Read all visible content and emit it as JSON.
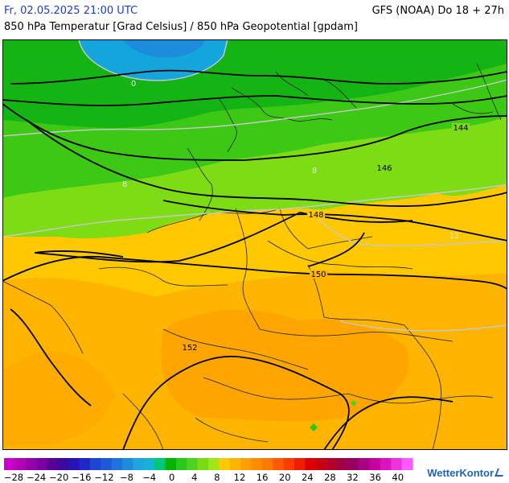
{
  "header": {
    "datetime": "Fr, 02.05.2025 21:00 UTC",
    "model_run": "GFS (NOAA) Do 18 + 27h",
    "subtitle": "850 hPa Temperatur [Grad Celsius] / 850 hPa Geopotential [gpdam]"
  },
  "map": {
    "geopotential_labels": [
      "144",
      "146",
      "148",
      "150",
      "152"
    ],
    "temperature_labels": [
      "0",
      "8",
      "8",
      "12"
    ]
  },
  "legend": {
    "ticks": [
      "−28",
      "−24",
      "−20",
      "−16",
      "−12",
      "−8",
      "−4",
      "0",
      "4",
      "8",
      "12",
      "16",
      "20",
      "24",
      "28",
      "32",
      "36",
      "40"
    ],
    "colors": [
      "#cc00cc",
      "#b400b4",
      "#9400aa",
      "#7a00a0",
      "#5a0096",
      "#3c0aa0",
      "#2814b4",
      "#1e28c8",
      "#1e46d2",
      "#1e5ad7",
      "#1e73dc",
      "#1e8cdc",
      "#1ea5dc",
      "#14b4d2",
      "#00c878",
      "#00b400",
      "#28c81e",
      "#50d21e",
      "#78dc14",
      "#a0e614",
      "#ffc800",
      "#ffb400",
      "#ffa000",
      "#ff8c00",
      "#ff7800",
      "#ff5a00",
      "#ff3c00",
      "#f01e00",
      "#dc0000",
      "#c80014",
      "#b4002d",
      "#a00046",
      "#960064",
      "#aa0082",
      "#c800a0",
      "#dc14be",
      "#f032dc",
      "#ff5aff"
    ],
    "brand": "WetterKontor"
  },
  "colors": {
    "title_blue": "#1a3cc8",
    "brand_blue": "#1f64b4"
  }
}
